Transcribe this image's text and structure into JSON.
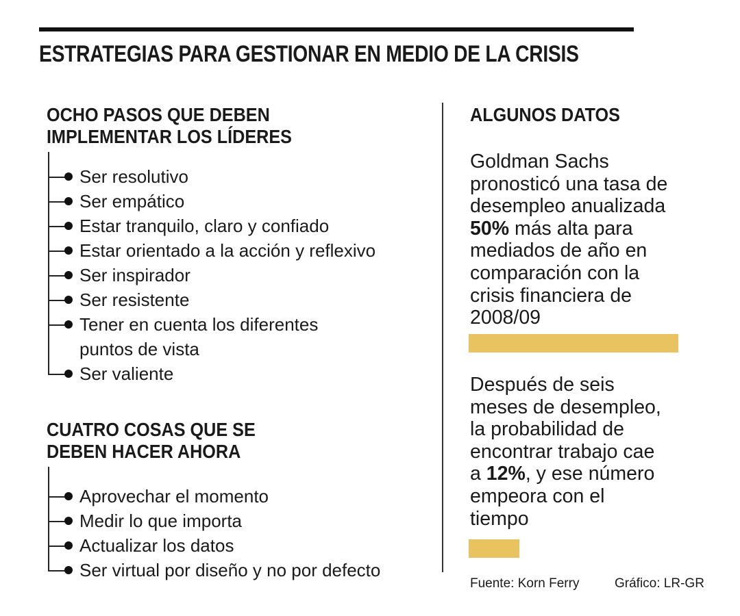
{
  "title": "ESTRATEGIAS PARA GESTIONAR EN MEDIO DE LA CRISIS",
  "left": {
    "section1": {
      "heading": [
        "OCHO PASOS QUE DEBEN",
        "IMPLEMENTAR LOS LÍDERES"
      ],
      "items": [
        "Ser resolutivo",
        "Ser empático",
        "Estar tranquilo, claro y confiado",
        "Estar orientado a la acción y reflexivo",
        "Ser inspirador",
        "Ser resistente",
        "Tener en cuenta los diferentes",
        "Ser valiente"
      ],
      "item7_line2": "puntos de vista"
    },
    "section2": {
      "heading": [
        "CUATRO COSAS QUE SE",
        "DEBEN HACER AHORA"
      ],
      "items": [
        "Aprovechar el momento",
        "Medir lo que importa",
        "Actualizar los datos",
        "Ser virtual por diseño y no por defecto"
      ]
    }
  },
  "right": {
    "heading": "ALGUNOS DATOS",
    "fact1": {
      "lines": [
        "Goldman Sachs",
        "pronosticó una tasa de",
        "desempleo anualizada",
        "50%",
        " más alta para",
        "mediados de año en",
        "comparación con la",
        "crisis financiera de",
        "2008/09"
      ],
      "bar_value": 50
    },
    "fact2": {
      "lines": [
        "Después de seis",
        "meses de desempleo,",
        "la probabilidad de",
        "encontrar trabajo cae",
        "a ",
        "12%",
        ", y ese número",
        "empeora con el",
        "tiempo"
      ],
      "bar_value": 12
    },
    "bar_color": "#e8c35f"
  },
  "footer": {
    "source": "Fuente:  Korn Ferry",
    "credit": "Gráfico: LR-GR"
  }
}
